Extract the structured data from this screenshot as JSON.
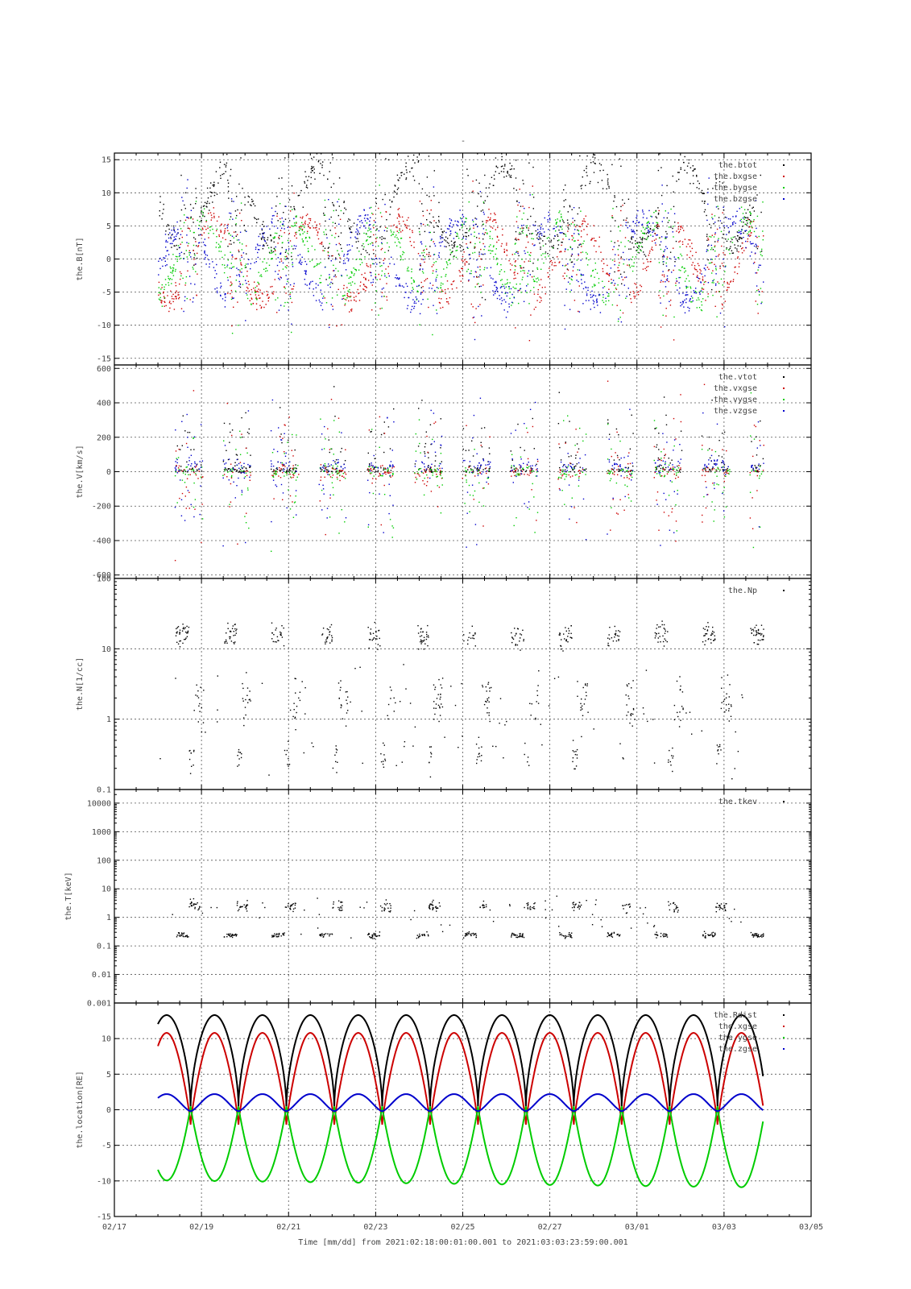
{
  "figure": {
    "title": "-",
    "xlabel": "Time [mm/dd]  from 2021:02:18:00:01:00.001  to  2021:03:03:23:59:00.001",
    "x_ticks": [
      "02/17",
      "02/19",
      "02/21",
      "02/23",
      "02/25",
      "02/27",
      "03/01",
      "03/03",
      "03/05"
    ],
    "x_range_days": [
      0,
      16
    ],
    "data_span_days": [
      1.0,
      14.9
    ]
  },
  "colors": {
    "black": "#000000",
    "red": "#cc0000",
    "green": "#00cc00",
    "blue": "#0000cc"
  },
  "chart_data": [
    {
      "type": "scatter",
      "id": "B",
      "ylabel": "the.B[nT]",
      "ylim": [
        -16,
        16
      ],
      "yscale": "linear",
      "y_ticks": [
        15,
        10,
        5,
        0,
        -5,
        -10,
        -15
      ],
      "grid": true,
      "legend_position": "top-right",
      "series": [
        {
          "name": "the.btot",
          "color": "#000000"
        },
        {
          "name": "the.bxgse",
          "color": "#cc0000"
        },
        {
          "name": "the.bygse",
          "color": "#00cc00"
        },
        {
          "name": "the.bzgse",
          "color": "#0000cc"
        }
      ]
    },
    {
      "type": "scatter",
      "id": "V",
      "ylabel": "the.V[km/s]",
      "ylim": [
        -620,
        620
      ],
      "yscale": "linear",
      "y_ticks": [
        600,
        400,
        200,
        0,
        -200,
        -400,
        -600
      ],
      "grid": true,
      "legend_position": "top-right",
      "series": [
        {
          "name": "the.vtot",
          "color": "#000000"
        },
        {
          "name": "the.vxgse",
          "color": "#cc0000"
        },
        {
          "name": "the.vygse",
          "color": "#00cc00"
        },
        {
          "name": "the.vzgse",
          "color": "#0000cc"
        }
      ]
    },
    {
      "type": "scatter",
      "id": "N",
      "ylabel": "the.N[1/cc]",
      "ylim": [
        0.1,
        100
      ],
      "yscale": "log",
      "y_ticks": [
        "100",
        "10",
        "1",
        "0.1"
      ],
      "grid": true,
      "legend_position": "top-right",
      "series": [
        {
          "name": "the.Np",
          "color": "#000000"
        }
      ]
    },
    {
      "type": "scatter",
      "id": "T",
      "ylabel": "the.T[keV]",
      "ylim": [
        0.001,
        30000
      ],
      "yscale": "log",
      "y_ticks": [
        "10000",
        "1000",
        "100",
        "10",
        "1",
        "0.1",
        "0.01",
        "0.001"
      ],
      "grid": true,
      "legend_position": "top-right",
      "series": [
        {
          "name": "the.tkev",
          "color": "#000000"
        }
      ]
    },
    {
      "type": "line",
      "id": "location",
      "ylabel": "the.location[RE]",
      "ylim": [
        -15,
        15
      ],
      "yscale": "linear",
      "y_ticks": [
        10,
        5,
        0,
        -5,
        -10,
        -15
      ],
      "grid": true,
      "legend_position": "top-right",
      "orbit_period_days": 1.1,
      "series": [
        {
          "name": "the.Rdist",
          "color": "#000000",
          "min": 0.5,
          "max": 13.3
        },
        {
          "name": "the.xgse",
          "color": "#cc0000",
          "min": -1.5,
          "max": 10.2
        },
        {
          "name": "the.ygse",
          "color": "#00cc00",
          "min": -11,
          "max": 0.5
        },
        {
          "name": "the.zgse",
          "color": "#0000cc",
          "min": -0.2,
          "max": 2.2
        }
      ]
    }
  ]
}
